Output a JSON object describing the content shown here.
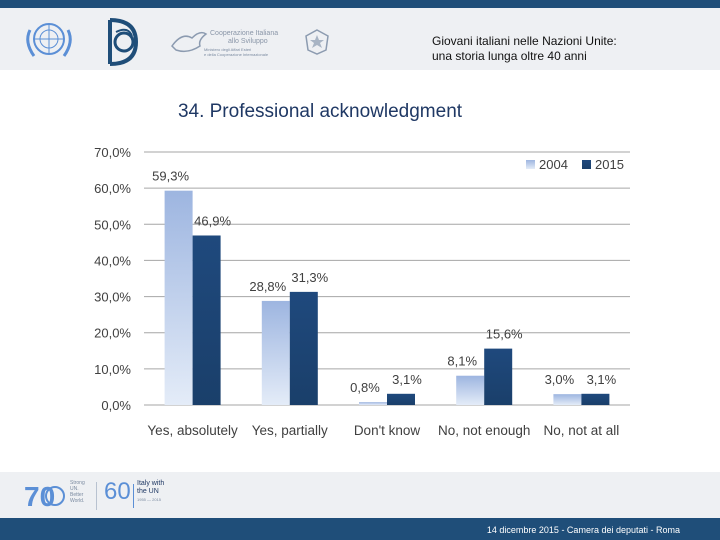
{
  "header": {
    "title_line1": "Giovani italiani nelle Nazioni Unite:",
    "title_line2": "una storia lunga oltre 40 anni",
    "coop_logo_lines": [
      "Cooperazione Italiana",
      "allo Sviluppo"
    ],
    "coop_logo_sub": [
      "Ministero degli Affari Esteri",
      "e della Cooperazione Internazionale"
    ]
  },
  "slide_title": "34. Professional acknowledgment",
  "footer": {
    "date_text": "14 dicembre 2015 - Camera dei deputati - Roma",
    "un70_number": "70",
    "un70_tagline": [
      "Strong",
      "UN.",
      "Better",
      "World."
    ],
    "italy60_number": "60",
    "italy60_lines": [
      "Italy with",
      "the UN"
    ],
    "italy60_years": "1955 — 2015"
  },
  "colors": {
    "series_2004": "#a8bfe3",
    "series_2015": "#1f497d",
    "grid": "#a6a6a6",
    "header_bg": "#eef0f3",
    "bar_blue": "#1f4e79"
  },
  "chart_data": {
    "type": "bar",
    "title": "34. Professional acknowledgment",
    "categories": [
      "Yes, absolutely",
      "Yes, partially",
      "Don't know",
      "No, not enough",
      "No, not at all"
    ],
    "series": [
      {
        "name": "2004",
        "values": [
          59.3,
          28.8,
          0.8,
          8.1,
          3.0
        ],
        "labels": [
          "59,3%",
          "28,8%",
          "0,8%",
          "8,1%",
          "3,0%"
        ]
      },
      {
        "name": "2015",
        "values": [
          46.9,
          31.3,
          3.1,
          15.6,
          3.1
        ],
        "labels": [
          "46,9%",
          "31,3%",
          "3,1%",
          "15,6%",
          "3,1%"
        ]
      }
    ],
    "yticks": [
      "0,0%",
      "10,0%",
      "20,0%",
      "30,0%",
      "40,0%",
      "50,0%",
      "60,0%",
      "70,0%"
    ],
    "ytick_values": [
      0,
      10,
      20,
      30,
      40,
      50,
      60,
      70
    ],
    "ylim": [
      0,
      70
    ],
    "grid": true,
    "legend_position": "top-right",
    "xlabel": "",
    "ylabel": ""
  }
}
